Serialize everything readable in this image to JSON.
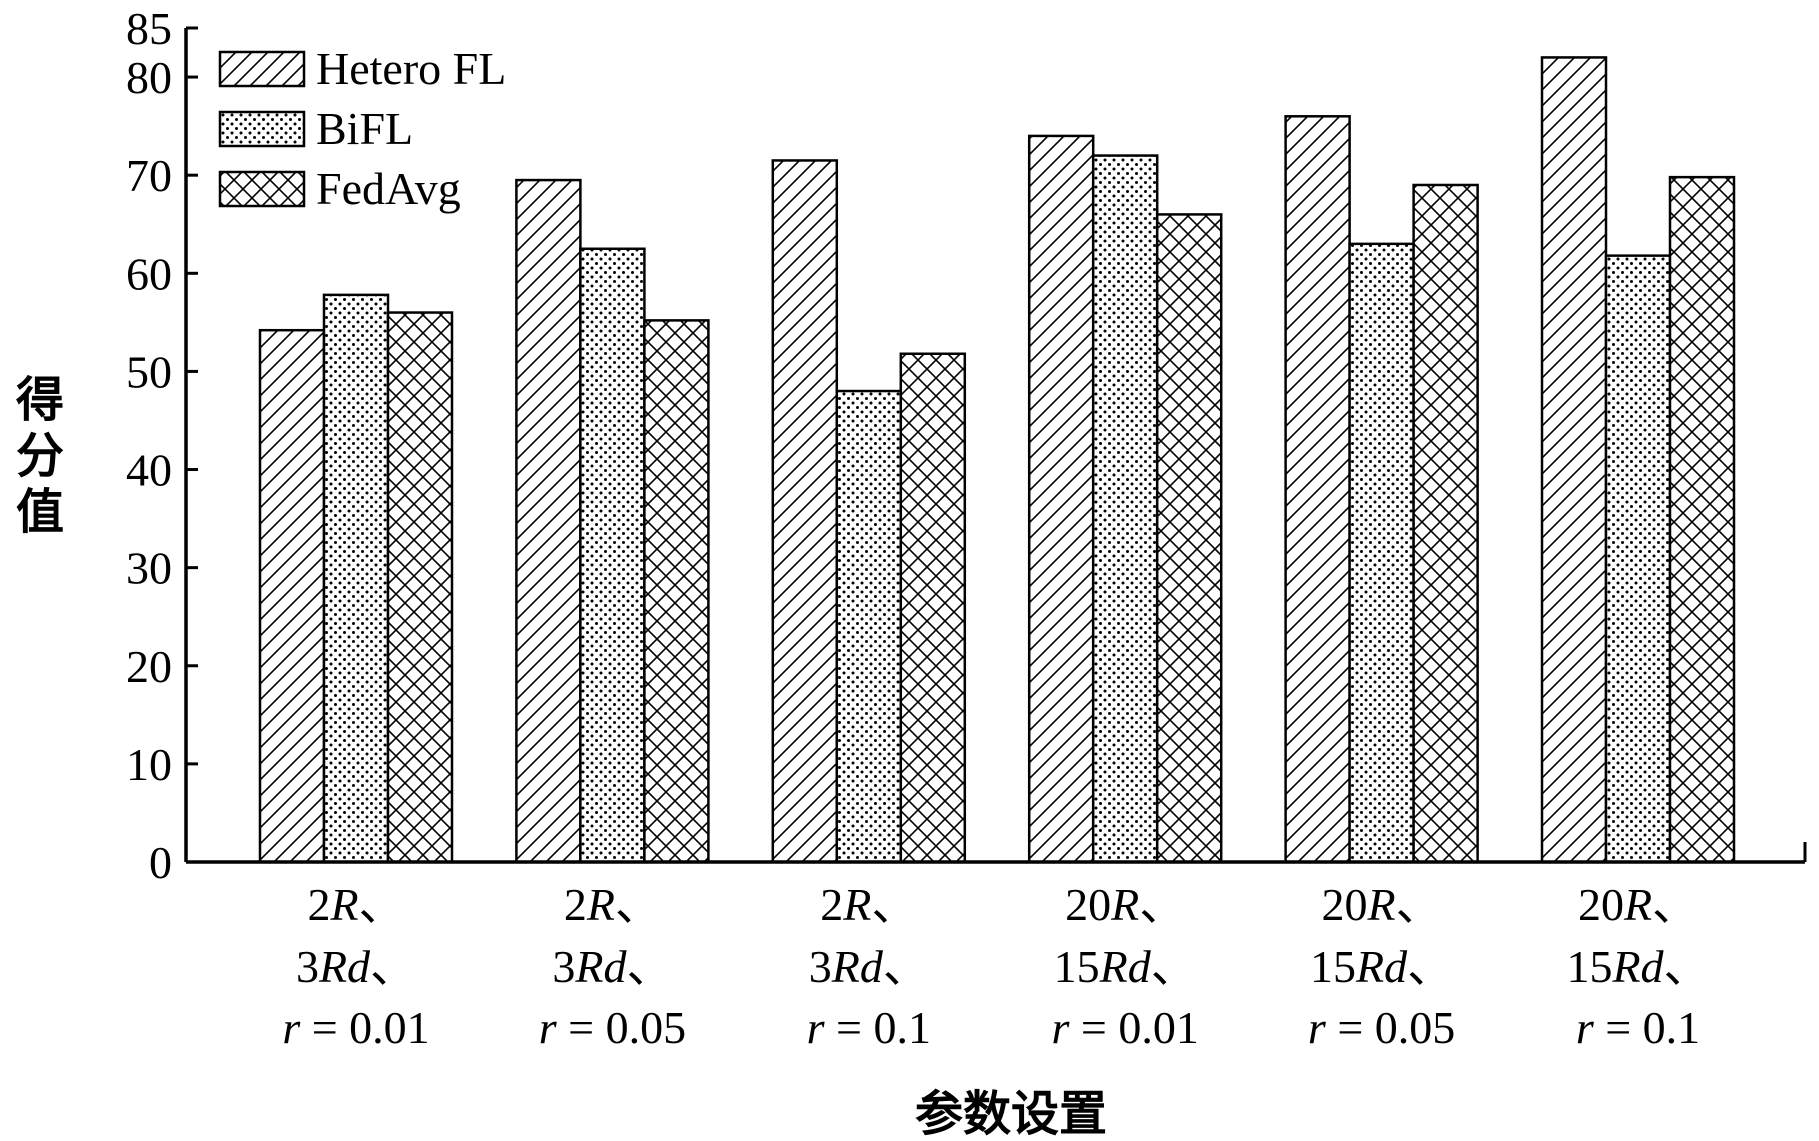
{
  "chart_data": {
    "type": "bar",
    "title": "",
    "xlabel": "参数设置",
    "ylabel": "得分值",
    "ylim": [
      0,
      85
    ],
    "yticks": [
      0,
      10,
      20,
      30,
      40,
      50,
      60,
      70,
      80,
      85
    ],
    "grid": false,
    "legend_position": "top-left",
    "categories": [
      [
        {
          "t": "2"
        },
        {
          "t": "R",
          "i": true
        },
        {
          "t": "、"
        }
      ],
      [
        {
          "t": "2"
        },
        {
          "t": "R",
          "i": true
        },
        {
          "t": "、"
        }
      ],
      [
        {
          "t": "2"
        },
        {
          "t": "R",
          "i": true
        },
        {
          "t": "、"
        }
      ],
      [
        {
          "t": "20"
        },
        {
          "t": "R",
          "i": true
        },
        {
          "t": "、"
        }
      ],
      [
        {
          "t": "20"
        },
        {
          "t": "R",
          "i": true
        },
        {
          "t": "、"
        }
      ],
      [
        {
          "t": "20"
        },
        {
          "t": "R",
          "i": true
        },
        {
          "t": "、"
        }
      ]
    ],
    "categories_line2": [
      [
        {
          "t": "3"
        },
        {
          "t": "Rd",
          "i": true
        },
        {
          "t": "、"
        }
      ],
      [
        {
          "t": "3"
        },
        {
          "t": "Rd",
          "i": true
        },
        {
          "t": "、"
        }
      ],
      [
        {
          "t": "3"
        },
        {
          "t": "Rd",
          "i": true
        },
        {
          "t": "、"
        }
      ],
      [
        {
          "t": "15"
        },
        {
          "t": "Rd",
          "i": true
        },
        {
          "t": "、"
        }
      ],
      [
        {
          "t": "15"
        },
        {
          "t": "Rd",
          "i": true
        },
        {
          "t": "、"
        }
      ],
      [
        {
          "t": "15"
        },
        {
          "t": "Rd",
          "i": true
        },
        {
          "t": "、"
        }
      ]
    ],
    "categories_line3": [
      [
        {
          "t": "r",
          "i": true
        },
        {
          "t": " = 0.01"
        }
      ],
      [
        {
          "t": "r",
          "i": true
        },
        {
          "t": " = 0.05"
        }
      ],
      [
        {
          "t": "r",
          "i": true
        },
        {
          "t": " = 0.1"
        }
      ],
      [
        {
          "t": "r",
          "i": true
        },
        {
          "t": " = 0.01"
        }
      ],
      [
        {
          "t": "r",
          "i": true
        },
        {
          "t": " = 0.05"
        }
      ],
      [
        {
          "t": "r",
          "i": true
        },
        {
          "t": " = 0.1"
        }
      ]
    ],
    "series": [
      {
        "name": "Hetero FL",
        "pattern": "diagonal-hatch",
        "values": [
          54.2,
          69.5,
          71.5,
          74.0,
          76.0,
          82.0
        ]
      },
      {
        "name": "BiFL",
        "pattern": "dots",
        "values": [
          57.8,
          62.5,
          48.0,
          72.0,
          63.0,
          61.8
        ]
      },
      {
        "name": "FedAvg",
        "pattern": "cross-hatch",
        "values": [
          56.0,
          55.2,
          51.8,
          66.0,
          69.0,
          69.8
        ]
      }
    ],
    "colors": {
      "stroke": "#000000",
      "fill": "#ffffff"
    }
  }
}
